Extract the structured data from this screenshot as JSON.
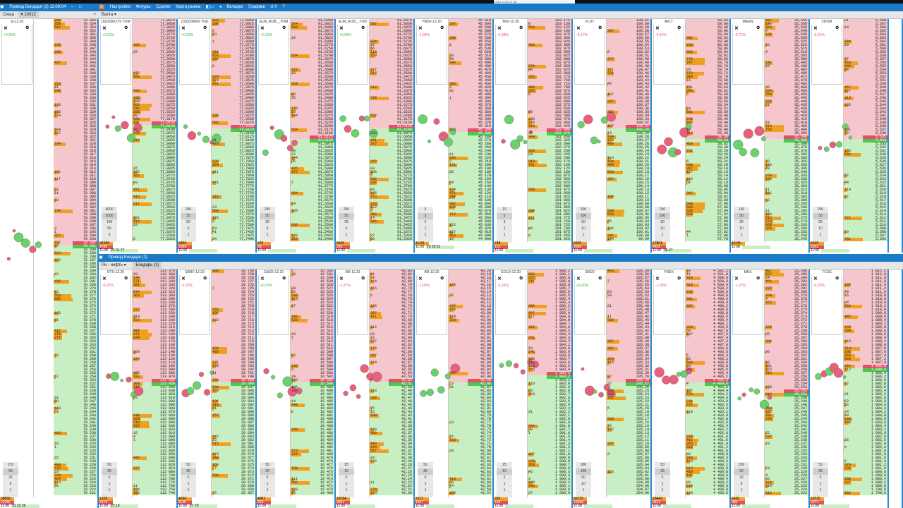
{
  "window1": {
    "title": "Привод Бондаря (1) 11:08:04",
    "minimize": "–",
    "maximize": "□",
    "menu": [
      "Настройки",
      "Фигуры",
      "Сделки",
      "Карта рынка"
    ],
    "menu2": [
      "Вкладки",
      "Графики",
      "d X",
      "?"
    ],
    "account_label": "Сиша",
    "account_value": "10012",
    "add": "+",
    "tab": "Валга"
  },
  "window2": {
    "title": "Привод Бондаря (2)",
    "group": "Ри - нефть",
    "tab": "Бондарь (1)"
  },
  "popup": "23:18      19:16      21:38",
  "time": "11:00",
  "left_panel": {
    "name": "Si-12.20",
    "change": "+0,05%",
    "top": 78355,
    "step": 1,
    "dec": 0,
    "spread": 0.48,
    "rows": 150,
    "lots": [
      "270",
      "50",
      "25",
      "5",
      "1"
    ],
    "f1": "38858",
    "f2": "11940",
    "f3": "31  33  36"
  },
  "top_panels": [
    {
      "name": "USD000UTS TOM",
      "change": "+0,01%",
      "top": 77.9875,
      "step": 0.0025,
      "dec": 4,
      "spread": 0.48,
      "lots": [
        "4000",
        "1000",
        "100",
        "50",
        "5"
      ],
      "f1": "32280",
      "f2": "4786",
      "f3": "22 31 27"
    },
    {
      "name": "USD000000 TOD",
      "change": "+0,02%",
      "top": 77.895,
      "step": 0.0025,
      "dec": 4,
      "spread": 0.5,
      "lots": [
        "250",
        "25",
        "50",
        "5",
        "1"
      ],
      "f1": "6830",
      "f2": "2588",
      "f3": ""
    },
    {
      "name": "EUR_RUB__TOM",
      "change": "+0,10%",
      "top": 91.695,
      "step": 0.0025,
      "dec": 4,
      "spread": 0.55,
      "lots": [
        "250",
        "50",
        "25",
        "5",
        "1"
      ],
      "f1": "370",
      "f2": "98",
      "f3": ""
    },
    {
      "name": "EUR_RUB__TOD",
      "change": "+0,09%",
      "top": 91.6875,
      "step": 0.0025,
      "dec": 4,
      "spread": 0.5,
      "lots": [
        "250",
        "50",
        "25",
        "5",
        "1"
      ],
      "f1": "5545",
      "f2": "265",
      "f3": ""
    },
    {
      "name": "YNDF-12.20",
      "change": "-1,09%",
      "top": 45610,
      "step": 10,
      "dec": 0,
      "spread": 0.52,
      "lots": [
        "5",
        "3",
        "2",
        "1",
        "1"
      ],
      "f1": "11:53",
      "f2": "",
      "f3": "19 20 21"
    },
    {
      "name": "MIX-12.20",
      "change": "-0,08%",
      "top": 283175,
      "step": 25,
      "dec": 0,
      "spread": 0.52,
      "lots": [
        "10",
        "5",
        "3",
        "2",
        "1"
      ],
      "f1": "748",
      "f2": "115",
      "f3": ""
    },
    {
      "name": "FLOT",
      "change": "-0,17%",
      "top": 100.61,
      "step": 0.01,
      "dec": 2,
      "spread": 0.5,
      "lots": [
        "500",
        "100",
        "50",
        "10",
        "1"
      ],
      "f1": "6230",
      "f2": "2098",
      "f3": ""
    },
    {
      "name": "AFLT",
      "change": "-0,41%",
      "top": 59.02,
      "step": 0.02,
      "dec": 2,
      "spread": 0.55,
      "lots": [
        "250",
        "100",
        "50",
        "10",
        "1"
      ],
      "f1": "17801",
      "f2": "4402",
      "f3": "28 27"
    },
    {
      "name": "MAGN",
      "change": "-0,71%",
      "top": 35.555,
      "step": 0.005,
      "dec": 3,
      "spread": 0.55,
      "lots": [
        "130",
        "50",
        "25",
        "10",
        "1"
      ],
      "f1": "16:00",
      "f2": "",
      "f3": ""
    },
    {
      "name": "CBOM",
      "change": "-0,61%",
      "top": 5.568,
      "step": 0.001,
      "dec": 3,
      "spread": 0.55,
      "lots": [
        "200",
        "50",
        "25",
        "10",
        "1"
      ],
      "f1": "6349",
      "f2": "1302",
      "f3": ""
    }
  ],
  "bottom_panels": [
    {
      "name": "RTS-12.20",
      "change": "-0,22%",
      "top": 113370,
      "step": 10,
      "dec": 0,
      "spread": 0.5,
      "lots": [
        "50",
        "25",
        "5",
        "1",
        "1"
      ],
      "f1": "1328",
      "f2": "1678",
      "f3": "22 19"
    },
    {
      "name": "SBRF-12.20",
      "change": "-0,23%",
      "top": 20730,
      "step": 1,
      "dec": 0,
      "spread": 0.5,
      "lots": [
        "50",
        "25",
        "5",
        "1",
        "1"
      ],
      "f1": "4296",
      "f2": "1140",
      "f3": "27 20"
    },
    {
      "name": "GAZR-12.20",
      "change": "+0,05%",
      "top": 16532,
      "step": 1,
      "dec": 0,
      "spread": 0.5,
      "lots": [
        "50",
        "25",
        "5",
        "1",
        "1"
      ],
      "f1": "4081",
      "f2": "918",
      "f3": ""
    },
    {
      "name": "BR-11.20",
      "change": "-1,27%",
      "top": 42.83,
      "step": 0.01,
      "dec": 2,
      "spread": 0.5,
      "lots": [
        "25",
        "10",
        "5",
        "1",
        "1"
      ],
      "f1": "18784",
      "f2": "3651",
      "f3": ""
    },
    {
      "name": "BR-12.20",
      "change": "-1,02%",
      "top": 43.2,
      "step": 0.01,
      "dec": 2,
      "spread": 0.5,
      "lots": [
        "50",
        "25",
        "5",
        "1",
        "1"
      ],
      "f1": "7117",
      "f2": "1697",
      "f3": ""
    },
    {
      "name": "GOLD-12.20",
      "change": "-0,26%",
      "top": 1906.2,
      "step": 0.1,
      "dec": 1,
      "spread": 0.48,
      "lots": [
        "25",
        "10",
        "5",
        "1",
        "1"
      ],
      "f1": "926",
      "f2": "134",
      "f3": ""
    },
    {
      "name": "SBER",
      "change": "+0,00%",
      "top": 205.59,
      "step": 0.01,
      "dec": 2,
      "spread": 0.5,
      "lots": [
        "300",
        "100",
        "50",
        "10",
        "1"
      ],
      "f1": "56725",
      "f2": "12560",
      "f3": ""
    },
    {
      "name": "YNDX",
      "change": "-1,03%",
      "top": 4501.2,
      "step": 0.2,
      "dec": 1,
      "spread": 0.5,
      "lots": [
        "50",
        "25",
        "5",
        "1",
        "1"
      ],
      "f1": "20443",
      "f2": "3512",
      "f3": ""
    },
    {
      "name": "MKS",
      "change": "-1,37%",
      "top": 25.286,
      "step": 0.001,
      "dec": 3,
      "spread": 0.55,
      "lots": [
        "250",
        "50",
        "25",
        "5",
        "1"
      ],
      "f1": "1430",
      "f2": "386",
      "f3": ""
    },
    {
      "name": "TCSG",
      "change": "-0,33%",
      "top": 1812.2,
      "step": 0.2,
      "dec": 1,
      "spread": 0.45,
      "lots": [
        "50",
        "25",
        "5",
        "1",
        "1"
      ],
      "f1": "10725",
      "f2": "2071",
      "f3": ""
    }
  ],
  "colors": {
    "titlebar": "#1a7ac8",
    "ask": "#f5c6cc",
    "bid": "#c8efc4",
    "volume": "#f0a020",
    "best_ask": "#e05068",
    "best_bid": "#4cc84c"
  }
}
